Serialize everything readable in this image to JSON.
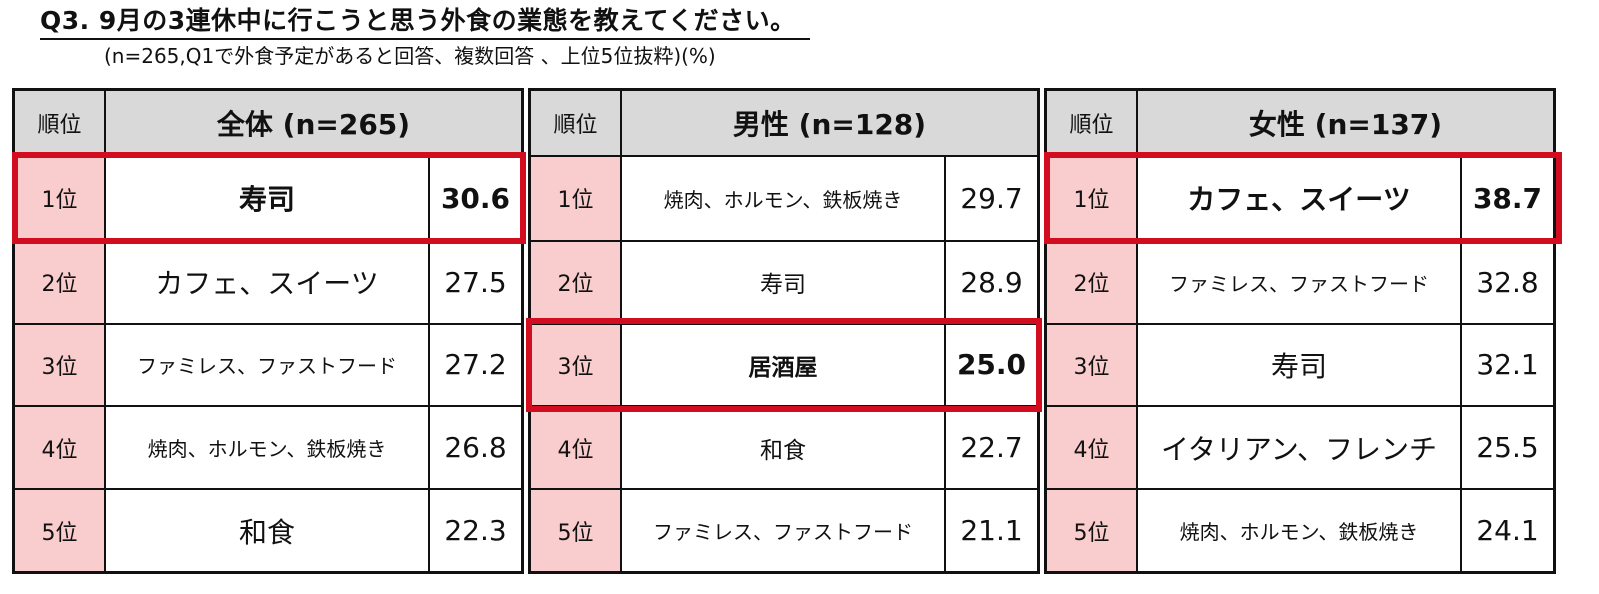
{
  "title": "Q3. 9月の3連休中に行こうと思う外食の業態を教えてください。",
  "subtitle": "(n=265,Q1で外食予定があると回答、複数回答 、上位5位抜粋)(%)",
  "rank_header": "順位",
  "panels": [
    {
      "header": "全体 (n=265)",
      "rows": [
        {
          "rank": "1位",
          "item": "寿司",
          "value": "30.6"
        },
        {
          "rank": "2位",
          "item": "カフェ、スイーツ",
          "value": "27.5"
        },
        {
          "rank": "3位",
          "item": "ファミレス、ファストフード",
          "value": "27.2"
        },
        {
          "rank": "4位",
          "item": "焼肉、ホルモン、鉄板焼き",
          "value": "26.8"
        },
        {
          "rank": "5位",
          "item": "和食",
          "value": "22.3"
        }
      ]
    },
    {
      "header": "男性 (n=128)",
      "rows": [
        {
          "rank": "1位",
          "item": "焼肉、ホルモン、鉄板焼き",
          "value": "29.7"
        },
        {
          "rank": "2位",
          "item": "寿司",
          "value": "28.9"
        },
        {
          "rank": "3位",
          "item": "居酒屋",
          "value": "25.0"
        },
        {
          "rank": "4位",
          "item": "和食",
          "value": "22.7"
        },
        {
          "rank": "5位",
          "item": "ファミレス、ファストフード",
          "value": "21.1"
        }
      ]
    },
    {
      "header": "女性 (n=137)",
      "rows": [
        {
          "rank": "1位",
          "item": "カフェ、スイーツ",
          "value": "38.7"
        },
        {
          "rank": "2位",
          "item": "ファミレス、ファストフード",
          "value": "32.8"
        },
        {
          "rank": "3位",
          "item": "寿司",
          "value": "32.1"
        },
        {
          "rank": "4位",
          "item": "イタリアン、フレンチ",
          "value": "25.5"
        },
        {
          "rank": "5位",
          "item": "焼肉、ホルモン、鉄板焼き",
          "value": "24.1"
        }
      ]
    }
  ],
  "colors": {
    "highlight_border": "#d10d1f",
    "rank_cell": "#f9cdcd",
    "header_cell": "#d9d9d9"
  }
}
